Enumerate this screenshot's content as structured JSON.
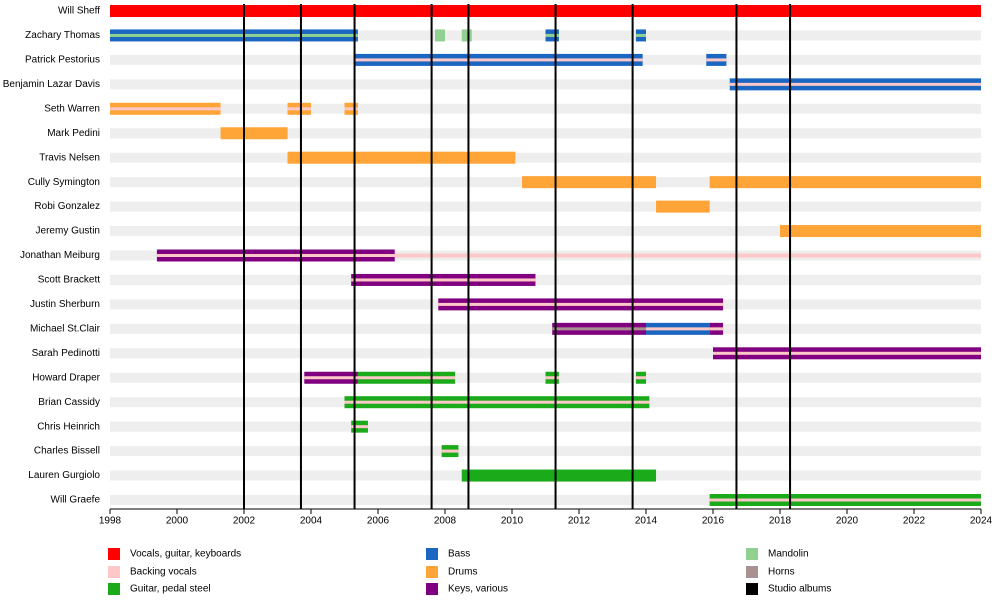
{
  "chart_data": {
    "type": "timeline",
    "xlim": [
      1998,
      2024
    ],
    "xticks": [
      1998,
      2000,
      2002,
      2004,
      2006,
      2008,
      2010,
      2012,
      2014,
      2016,
      2018,
      2020,
      2022,
      2024
    ],
    "roles": [
      {
        "name": "Vocals, guitar, keyboards",
        "color": "#ff0000"
      },
      {
        "name": "Backing vocals",
        "color": "#ffc8c8"
      },
      {
        "name": "Guitar, pedal steel",
        "color": "#1aaa1a"
      },
      {
        "name": "Bass",
        "color": "#1a66c0"
      },
      {
        "name": "Drums",
        "color": "#ffa436"
      },
      {
        "name": "Keys, various",
        "color": "#800080"
      },
      {
        "name": "Mandolin",
        "color": "#90d090"
      },
      {
        "name": "Horns",
        "color": "#a89090"
      }
    ],
    "albums_label": "Studio albums",
    "albums_color": "#000000",
    "albums": [
      2002.0,
      2003.7,
      2005.3,
      2007.6,
      2008.7,
      2011.3,
      2013.6,
      2016.7,
      2018.3
    ],
    "members": [
      {
        "name": "Will Sheff",
        "periods": [
          {
            "start": 1998,
            "end": 2024,
            "roles": [
              "Vocals, guitar, keyboards"
            ]
          }
        ]
      },
      {
        "name": "Zachary Thomas",
        "periods": [
          {
            "start": 1998,
            "end": 2005.4,
            "roles": [
              "Bass",
              "Mandolin"
            ]
          },
          {
            "start": 2007.7,
            "end": 2008.0,
            "roles": [
              "Mandolin"
            ]
          },
          {
            "start": 2008.5,
            "end": 2008.8,
            "roles": [
              "Mandolin"
            ]
          },
          {
            "start": 2011.0,
            "end": 2011.4,
            "roles": [
              "Bass",
              "Mandolin"
            ]
          },
          {
            "start": 2013.7,
            "end": 2014.0,
            "roles": [
              "Bass",
              "Mandolin"
            ]
          }
        ]
      },
      {
        "name": "Patrick Pestorius",
        "periods": [
          {
            "start": 2005.3,
            "end": 2013.9,
            "roles": [
              "Bass",
              "Backing vocals"
            ]
          },
          {
            "start": 2015.8,
            "end": 2016.4,
            "roles": [
              "Bass",
              "Backing vocals"
            ]
          }
        ]
      },
      {
        "name": "Benjamin Lazar Davis",
        "periods": [
          {
            "start": 2016.5,
            "end": 2024,
            "roles": [
              "Bass",
              "Backing vocals"
            ]
          }
        ]
      },
      {
        "name": "Seth Warren",
        "periods": [
          {
            "start": 1998,
            "end": 2001.3,
            "roles": [
              "Drums",
              "Backing vocals"
            ]
          },
          {
            "start": 2003.3,
            "end": 2004.0,
            "roles": [
              "Drums",
              "Backing vocals"
            ]
          },
          {
            "start": 2005.0,
            "end": 2005.4,
            "roles": [
              "Drums",
              "Backing vocals"
            ]
          }
        ]
      },
      {
        "name": "Mark Pedini",
        "periods": [
          {
            "start": 2001.3,
            "end": 2003.3,
            "roles": [
              "Drums"
            ]
          }
        ]
      },
      {
        "name": "Travis Nelsen",
        "periods": [
          {
            "start": 2003.3,
            "end": 2010.1,
            "roles": [
              "Drums"
            ]
          }
        ]
      },
      {
        "name": "Cully Symington",
        "periods": [
          {
            "start": 2010.3,
            "end": 2014.3,
            "roles": [
              "Drums"
            ]
          },
          {
            "start": 2015.9,
            "end": 2024,
            "roles": [
              "Drums"
            ]
          }
        ]
      },
      {
        "name": "Robi Gonzalez",
        "periods": [
          {
            "start": 2014.3,
            "end": 2015.9,
            "roles": [
              "Drums"
            ]
          }
        ]
      },
      {
        "name": "Jeremy Gustin",
        "periods": [
          {
            "start": 2018.0,
            "end": 2024,
            "roles": [
              "Drums"
            ]
          }
        ]
      },
      {
        "name": "Jonathan Meiburg",
        "periods": [
          {
            "start": 1999.4,
            "end": 2006.5,
            "roles": [
              "Keys, various",
              "Backing vocals"
            ]
          },
          {
            "start": 2006.5,
            "end": 2024,
            "roles": [
              "Backing vocals"
            ]
          }
        ]
      },
      {
        "name": "Scott Brackett",
        "periods": [
          {
            "start": 2005.2,
            "end": 2010.7,
            "roles": [
              "Keys, various",
              "Backing vocals"
            ]
          }
        ]
      },
      {
        "name": "Justin Sherburn",
        "periods": [
          {
            "start": 2007.8,
            "end": 2016.3,
            "roles": [
              "Keys, various",
              "Backing vocals"
            ]
          }
        ]
      },
      {
        "name": "Michael St.Clair",
        "periods": [
          {
            "start": 2011.2,
            "end": 2014.0,
            "roles": [
              "Keys, various",
              "Horns"
            ]
          },
          {
            "start": 2014.0,
            "end": 2015.9,
            "roles": [
              "Bass",
              "Backing vocals"
            ]
          },
          {
            "start": 2015.9,
            "end": 2016.3,
            "roles": [
              "Keys, various",
              "Backing vocals"
            ]
          }
        ]
      },
      {
        "name": "Sarah Pedinotti",
        "periods": [
          {
            "start": 2016.0,
            "end": 2024,
            "roles": [
              "Keys, various",
              "Backing vocals"
            ]
          }
        ]
      },
      {
        "name": "Howard Draper",
        "periods": [
          {
            "start": 2003.8,
            "end": 2005.4,
            "roles": [
              "Keys, various",
              "Backing vocals"
            ]
          },
          {
            "start": 2005.4,
            "end": 2008.3,
            "roles": [
              "Guitar, pedal steel",
              "Backing vocals"
            ]
          },
          {
            "start": 2011.0,
            "end": 2011.4,
            "roles": [
              "Guitar, pedal steel",
              "Backing vocals"
            ]
          },
          {
            "start": 2013.7,
            "end": 2014.0,
            "roles": [
              "Guitar, pedal steel",
              "Backing vocals"
            ]
          }
        ]
      },
      {
        "name": "Brian Cassidy",
        "periods": [
          {
            "start": 2005.0,
            "end": 2014.1,
            "roles": [
              "Guitar, pedal steel",
              "Backing vocals"
            ]
          }
        ]
      },
      {
        "name": "Chris Heinrich",
        "periods": [
          {
            "start": 2005.2,
            "end": 2005.7,
            "roles": [
              "Guitar, pedal steel",
              "Backing vocals"
            ]
          }
        ]
      },
      {
        "name": "Charles Bissell",
        "periods": [
          {
            "start": 2007.9,
            "end": 2008.4,
            "roles": [
              "Guitar, pedal steel",
              "Backing vocals"
            ]
          }
        ]
      },
      {
        "name": "Lauren Gurgiolo",
        "periods": [
          {
            "start": 2008.5,
            "end": 2014.3,
            "roles": [
              "Guitar, pedal steel"
            ]
          }
        ]
      },
      {
        "name": "Will Graefe",
        "periods": [
          {
            "start": 2015.9,
            "end": 2024,
            "roles": [
              "Guitar, pedal steel",
              "Backing vocals"
            ]
          }
        ]
      }
    ]
  }
}
